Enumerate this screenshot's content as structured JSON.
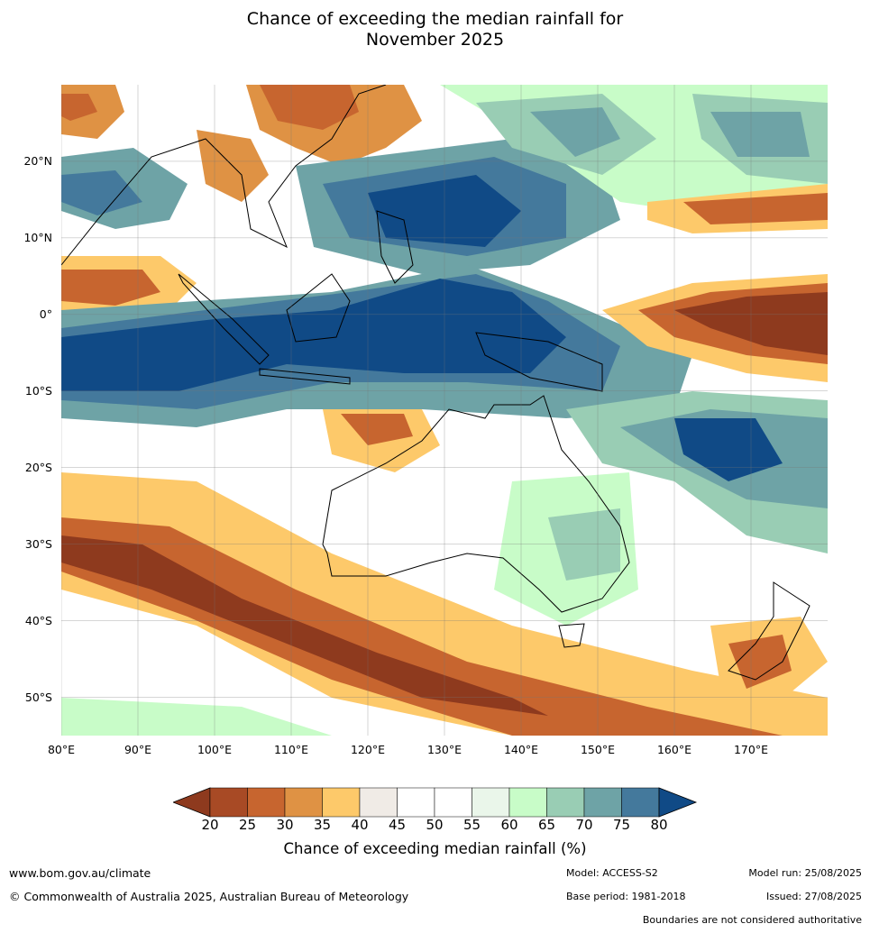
{
  "title": {
    "line1": "Chance of exceeding the median rainfall for",
    "line2": "November 2025"
  },
  "map": {
    "lat_ticks": [
      "20°N",
      "10°N",
      "0°",
      "10°S",
      "20°S",
      "30°S",
      "40°S",
      "50°S"
    ],
    "lon_ticks": [
      "80°E",
      "90°E",
      "100°E",
      "110°E",
      "120°E",
      "130°E",
      "140°E",
      "150°E",
      "160°E",
      "170°E"
    ],
    "lat_values": [
      20,
      10,
      0,
      -10,
      -20,
      -30,
      -40,
      -50
    ],
    "lon_values": [
      80,
      90,
      100,
      110,
      120,
      130,
      140,
      150,
      160,
      170
    ],
    "lon_range": [
      80,
      180
    ],
    "lat_range": [
      -55,
      30
    ],
    "grid": true
  },
  "legend": {
    "title": "Chance of exceeding median rainfall (%)",
    "levels": [
      "20",
      "25",
      "30",
      "35",
      "40",
      "45",
      "50",
      "55",
      "60",
      "65",
      "70",
      "75",
      "80"
    ],
    "colors": [
      "#8e3a1e",
      "#a84a25",
      "#c7652f",
      "#df9244",
      "#fdc96a",
      "#f0ebe6",
      "#ffffff",
      "#ffffff",
      "#eaf6ea",
      "#c8fcc8",
      "#99cdb4",
      "#6ea3a6",
      "#44799c",
      "#104a86"
    ]
  },
  "footer": {
    "website": "www.bom.gov.au/climate",
    "copyright": "© Commonwealth of Australia 2025, Australian Bureau of Meteorology",
    "model": "Model: ACCESS-S2",
    "base_period": "Base period: 1981-2018",
    "model_run": "Model run: 25/08/2025",
    "issued": "Issued: 27/08/2025",
    "disclaimer": "Boundaries are not considered authoritative"
  }
}
